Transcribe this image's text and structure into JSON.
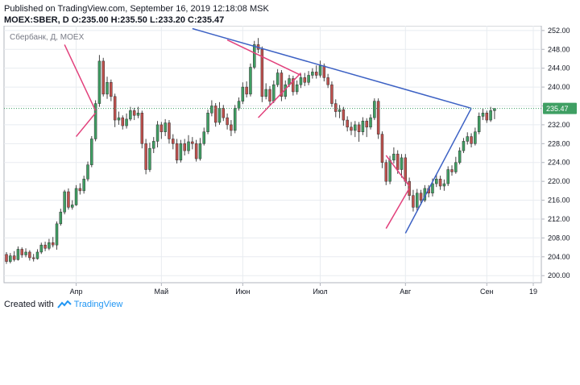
{
  "header": {
    "published": "Published on TradingView.com, September 16, 2019 12:18:08 MSK",
    "ohlc": "MOEX:SBER, D  O:235.00 H:235.50 L:233.20 C:235.47"
  },
  "footer": {
    "created_with": "Created with",
    "brand": "TradingView"
  },
  "colors": {
    "up": "#3f9f63",
    "down": "#c0504d",
    "wick": "#444444",
    "trend_blue": "#3c61c4",
    "trend_pink": "#e2417c",
    "grid": "#e8ecf0",
    "price_tag": "#3f9f63"
  },
  "chart_data": {
    "type": "candlestick",
    "symbol_label": "Сбербанк, Д, MOEX",
    "ylim": [
      198.5,
      253
    ],
    "yticks": [
      200,
      204,
      208,
      212,
      216,
      220,
      224,
      228,
      232,
      236,
      240,
      244,
      248,
      252
    ],
    "ytick_labels": [
      "200.00",
      "204.00",
      "208.00",
      "212.00",
      "216.00",
      "220.00",
      "224.00",
      "228.00",
      "232.00",
      "236.00",
      "240.00",
      "244.00",
      "248.00",
      "252.00"
    ],
    "xlim": [
      0,
      136
    ],
    "xticks": [
      {
        "i": 18,
        "label": "Апр"
      },
      {
        "i": 40,
        "label": "Май"
      },
      {
        "i": 61,
        "label": "Июн"
      },
      {
        "i": 81,
        "label": "Июл"
      },
      {
        "i": 103,
        "label": "Авг"
      },
      {
        "i": 124,
        "label": "Сен"
      },
      {
        "i": 136,
        "label": "19"
      }
    ],
    "last_price": 235.47,
    "last_price_label": "235.47",
    "candles": [
      [
        204.5,
        203.0,
        205.0,
        202.5
      ],
      [
        203.0,
        204.2,
        204.8,
        202.6
      ],
      [
        204.2,
        203.4,
        205.2,
        203.0
      ],
      [
        203.4,
        205.6,
        206.2,
        203.2
      ],
      [
        205.6,
        204.4,
        206.0,
        203.8
      ],
      [
        204.4,
        205.0,
        205.8,
        203.9
      ],
      [
        205.0,
        203.8,
        205.4,
        203.2
      ],
      [
        203.8,
        203.6,
        204.6,
        203.0
      ],
      [
        203.6,
        205.0,
        205.6,
        203.4
      ],
      [
        205.0,
        206.5,
        207.0,
        204.6
      ],
      [
        206.5,
        205.8,
        207.2,
        205.2
      ],
      [
        205.8,
        207.0,
        207.8,
        205.4
      ],
      [
        207.0,
        206.5,
        208.2,
        206.0
      ],
      [
        206.5,
        211.0,
        211.5,
        205.5
      ],
      [
        211.0,
        213.5,
        214.2,
        210.6
      ],
      [
        213.5,
        217.8,
        218.2,
        213.0
      ],
      [
        217.8,
        214.5,
        218.5,
        214.0
      ],
      [
        214.5,
        215.0,
        216.0,
        214.0
      ],
      [
        215.0,
        218.5,
        219.2,
        214.8
      ],
      [
        218.5,
        218.0,
        219.6,
        217.2
      ],
      [
        218.0,
        220.5,
        221.2,
        217.4
      ],
      [
        220.5,
        223.5,
        224.2,
        220.0
      ],
      [
        223.5,
        229.0,
        229.6,
        223.0
      ],
      [
        229.0,
        236.5,
        237.2,
        228.5
      ],
      [
        236.5,
        245.5,
        246.8,
        235.8
      ],
      [
        245.5,
        238.5,
        246.2,
        238.0
      ],
      [
        238.5,
        241.0,
        242.2,
        237.5
      ],
      [
        241.0,
        238.0,
        241.6,
        237.0
      ],
      [
        238.0,
        233.0,
        238.6,
        231.5
      ],
      [
        233.0,
        233.5,
        234.8,
        232.0
      ],
      [
        233.5,
        231.8,
        234.0,
        231.0
      ],
      [
        231.8,
        233.2,
        234.4,
        231.2
      ],
      [
        233.2,
        235.0,
        235.8,
        232.8
      ],
      [
        235.0,
        234.0,
        235.6,
        233.0
      ],
      [
        234.0,
        234.5,
        235.8,
        233.4
      ],
      [
        234.5,
        228.0,
        235.0,
        227.0
      ],
      [
        228.0,
        222.5,
        229.0,
        221.5
      ],
      [
        222.5,
        227.0,
        228.2,
        222.0
      ],
      [
        227.0,
        228.5,
        229.4,
        226.0
      ],
      [
        228.5,
        232.0,
        232.8,
        227.2
      ],
      [
        232.0,
        230.5,
        232.6,
        229.0
      ],
      [
        230.5,
        232.4,
        233.2,
        229.6
      ],
      [
        232.4,
        229.0,
        233.0,
        228.0
      ],
      [
        229.0,
        228.0,
        230.0,
        226.8
      ],
      [
        228.0,
        224.5,
        229.0,
        223.8
      ],
      [
        224.5,
        228.0,
        228.8,
        224.0
      ],
      [
        228.0,
        226.5,
        229.0,
        225.5
      ],
      [
        226.5,
        228.4,
        229.8,
        225.8
      ],
      [
        228.4,
        228.0,
        229.4,
        226.8
      ],
      [
        228.0,
        224.8,
        228.8,
        224.2
      ],
      [
        224.8,
        228.0,
        229.2,
        224.4
      ],
      [
        228.0,
        230.5,
        231.4,
        227.6
      ],
      [
        230.5,
        234.5,
        235.2,
        230.0
      ],
      [
        234.5,
        236.0,
        237.2,
        233.8
      ],
      [
        236.0,
        232.5,
        236.6,
        231.6
      ],
      [
        232.5,
        235.5,
        236.8,
        232.0
      ],
      [
        235.5,
        233.5,
        236.2,
        232.8
      ],
      [
        233.5,
        232.0,
        234.4,
        231.0
      ],
      [
        232.0,
        230.8,
        233.0,
        229.6
      ],
      [
        230.8,
        235.5,
        236.2,
        230.2
      ],
      [
        235.5,
        237.0,
        237.8,
        235.0
      ],
      [
        237.0,
        240.0,
        241.0,
        236.4
      ],
      [
        240.0,
        238.5,
        241.2,
        237.8
      ],
      [
        238.5,
        244.2,
        245.0,
        238.0
      ],
      [
        244.2,
        249.0,
        249.8,
        243.8
      ],
      [
        249.0,
        248.0,
        250.4,
        247.2
      ],
      [
        248.0,
        238.0,
        248.6,
        236.8
      ],
      [
        238.0,
        239.5,
        240.8,
        237.4
      ],
      [
        239.5,
        237.0,
        240.2,
        236.2
      ],
      [
        237.0,
        240.5,
        241.4,
        236.6
      ],
      [
        240.5,
        243.0,
        243.8,
        240.0
      ],
      [
        243.0,
        238.0,
        243.6,
        237.0
      ],
      [
        238.0,
        240.5,
        241.4,
        237.4
      ],
      [
        240.5,
        241.8,
        242.6,
        240.0
      ],
      [
        241.8,
        239.0,
        242.4,
        238.2
      ],
      [
        239.0,
        240.5,
        241.4,
        238.4
      ],
      [
        240.5,
        242.0,
        242.8,
        239.8
      ],
      [
        242.0,
        241.0,
        243.0,
        240.2
      ],
      [
        241.0,
        242.5,
        243.4,
        240.4
      ],
      [
        242.5,
        243.2,
        244.0,
        241.8
      ],
      [
        243.2,
        242.5,
        244.6,
        241.8
      ],
      [
        242.5,
        244.5,
        245.6,
        242.0
      ],
      [
        244.5,
        242.0,
        245.0,
        241.2
      ],
      [
        242.0,
        240.5,
        242.8,
        239.8
      ],
      [
        240.5,
        236.5,
        241.2,
        235.8
      ],
      [
        236.5,
        234.8,
        237.4,
        233.6
      ],
      [
        234.8,
        235.2,
        236.2,
        233.4
      ],
      [
        235.2,
        233.0,
        235.8,
        231.8
      ],
      [
        233.0,
        231.5,
        233.8,
        230.6
      ],
      [
        231.5,
        230.8,
        232.6,
        229.8
      ],
      [
        230.8,
        232.0,
        232.8,
        229.4
      ],
      [
        232.0,
        230.5,
        232.6,
        228.4
      ],
      [
        230.5,
        232.8,
        233.6,
        229.8
      ],
      [
        232.8,
        231.5,
        233.4,
        229.4
      ],
      [
        231.5,
        233.5,
        234.2,
        231.0
      ],
      [
        233.5,
        237.0,
        237.6,
        233.0
      ],
      [
        237.0,
        230.0,
        237.6,
        229.0
      ],
      [
        230.0,
        224.0,
        230.6,
        222.8
      ],
      [
        224.0,
        220.0,
        224.6,
        219.2
      ],
      [
        220.0,
        224.5,
        225.4,
        219.4
      ],
      [
        224.5,
        225.8,
        227.2,
        223.8
      ],
      [
        225.8,
        222.5,
        226.6,
        221.6
      ],
      [
        222.5,
        225.0,
        225.8,
        220.8
      ],
      [
        225.0,
        220.0,
        225.8,
        219.0
      ],
      [
        220.0,
        217.0,
        220.8,
        216.0
      ],
      [
        217.0,
        214.5,
        218.2,
        213.6
      ],
      [
        214.5,
        217.5,
        218.4,
        213.8
      ],
      [
        217.5,
        216.0,
        218.2,
        215.0
      ],
      [
        216.0,
        218.5,
        219.2,
        215.6
      ],
      [
        218.5,
        217.5,
        219.2,
        216.6
      ],
      [
        217.5,
        219.5,
        220.6,
        216.8
      ],
      [
        219.5,
        220.5,
        221.4,
        218.8
      ],
      [
        220.5,
        219.0,
        221.2,
        218.2
      ],
      [
        219.0,
        219.5,
        220.4,
        218.0
      ],
      [
        219.5,
        222.5,
        223.2,
        219.0
      ],
      [
        222.5,
        222.0,
        223.4,
        221.2
      ],
      [
        222.0,
        224.0,
        225.2,
        221.6
      ],
      [
        224.0,
        226.5,
        227.2,
        223.6
      ],
      [
        226.5,
        228.5,
        229.2,
        226.0
      ],
      [
        228.5,
        229.5,
        230.4,
        227.8
      ],
      [
        229.5,
        228.0,
        230.2,
        227.2
      ],
      [
        228.0,
        230.5,
        231.4,
        227.6
      ],
      [
        230.5,
        233.8,
        234.6,
        230.0
      ],
      [
        233.8,
        234.5,
        235.4,
        233.0
      ],
      [
        234.5,
        233.0,
        235.0,
        232.4
      ],
      [
        233.0,
        235.0,
        235.8,
        232.6
      ],
      [
        235.0,
        235.47,
        235.5,
        233.2
      ]
    ],
    "trendlines": [
      {
        "name": "resistance",
        "color": "blue",
        "points": [
          [
            48,
            252.4
          ],
          [
            120,
            235.5
          ]
        ]
      },
      {
        "name": "support",
        "color": "blue",
        "points": [
          [
            103,
            209.0
          ],
          [
            120,
            235.5
          ]
        ]
      },
      {
        "name": "wedge-1-top",
        "color": "pink",
        "points": [
          [
            15,
            249.0
          ],
          [
            23,
            235.0
          ]
        ]
      },
      {
        "name": "wedge-1-bottom",
        "color": "pink",
        "points": [
          [
            18,
            229.5
          ],
          [
            23,
            234.5
          ]
        ]
      },
      {
        "name": "wedge-2-top",
        "color": "pink",
        "points": [
          [
            57,
            250.0
          ],
          [
            76,
            242.5
          ]
        ]
      },
      {
        "name": "wedge-2-bottom",
        "color": "pink",
        "points": [
          [
            65,
            233.5
          ],
          [
            76,
            243.0
          ]
        ]
      },
      {
        "name": "wedge-3-top",
        "color": "pink",
        "points": [
          [
            98,
            225.5
          ],
          [
            104,
            219.0
          ]
        ]
      },
      {
        "name": "wedge-3-bottom",
        "color": "pink",
        "points": [
          [
            98,
            210.0
          ],
          [
            104,
            218.5
          ]
        ]
      }
    ]
  }
}
